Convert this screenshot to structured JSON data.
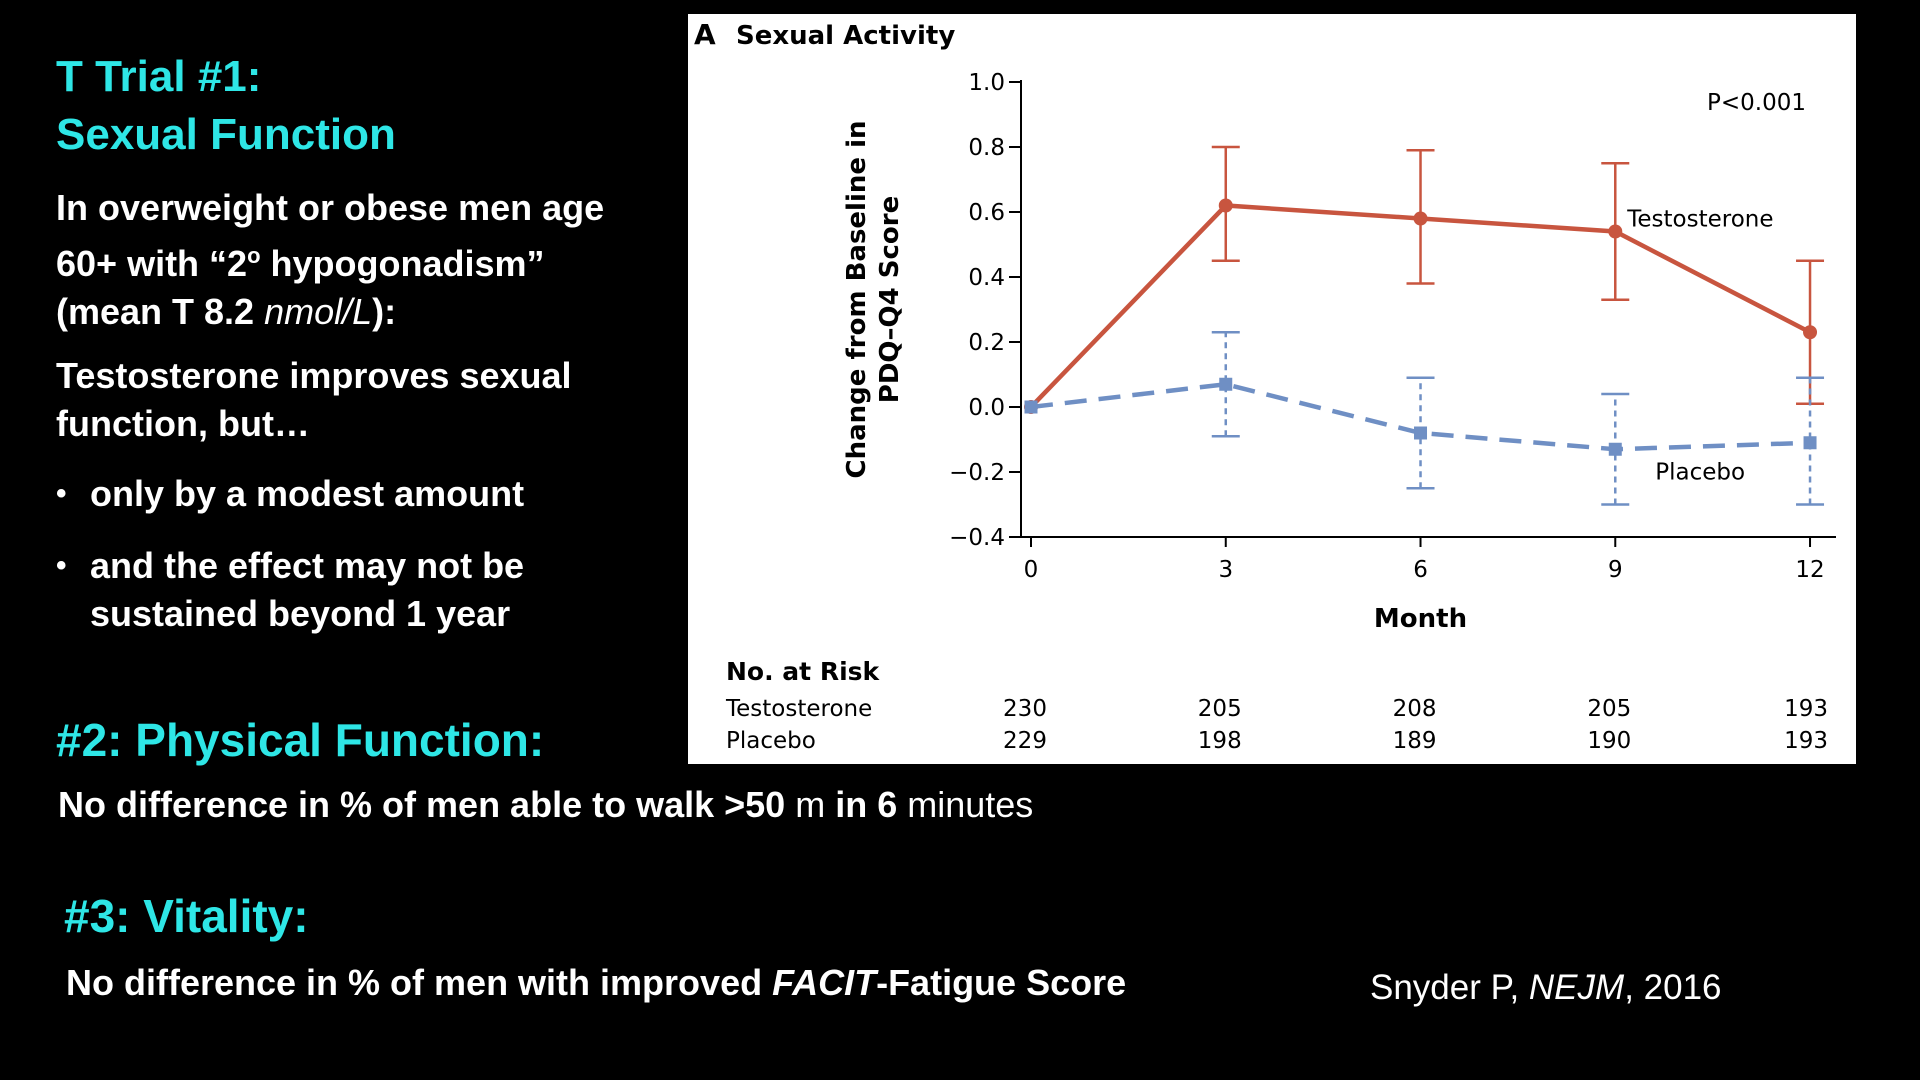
{
  "trial1": {
    "title_line1": "T Trial #1:",
    "title_line2": "Sexual Function",
    "intro_line1": "In overweight or obese men age",
    "intro_line2": "60+ with “2",
    "intro_degree": "o",
    "intro_line2b": " hypogonadism”",
    "intro_line3a": "(mean T 8.2 ",
    "intro_unit": "nmol/L",
    "intro_line3b": "):",
    "finding_line1": "Testosterone improves sexual",
    "finding_line2": "function, but…",
    "bullets": [
      {
        "line1": "only by a modest amount",
        "line2": ""
      },
      {
        "line1": "and the effect may not be",
        "line2": "sustained beyond 1 year"
      }
    ]
  },
  "trial2": {
    "title": "#2: Physical Function:",
    "body_a": "No difference in % of men able to walk >50",
    "body_b": " m ",
    "body_c": "in 6",
    "body_d": " minutes"
  },
  "trial3": {
    "title": "#3: Vitality:",
    "body_a": "No difference in % of men with improved ",
    "body_b": "FACIT",
    "body_c": "-Fatigue Score"
  },
  "citation": {
    "author": "Snyder P, ",
    "journal": "NEJM",
    "year": ", 2016"
  },
  "chart_data": {
    "type": "line",
    "panel_label": "A",
    "title": "Sexual Activity",
    "xlabel": "Month",
    "ylabel_line1": "Change from Baseline in",
    "ylabel_line2": "PDQ–Q4 Score",
    "x": [
      0,
      3,
      6,
      9,
      12
    ],
    "x_ticks": [
      "0",
      "3",
      "6",
      "9",
      "12"
    ],
    "y_ticks": [
      "1.0",
      "0.8",
      "0.6",
      "0.4",
      "0.2",
      "0.0",
      "−0.2",
      "−0.4"
    ],
    "ylim": [
      -0.4,
      1.0
    ],
    "xlim": [
      0,
      12.4
    ],
    "annotation": "P<0.001",
    "series": [
      {
        "name": "Testosterone",
        "color": "#c8553f",
        "style": "solid",
        "values": [
          0.0,
          0.62,
          0.58,
          0.54,
          0.23
        ],
        "err_low": [
          0.0,
          0.45,
          0.38,
          0.33,
          0.01
        ],
        "err_high": [
          0.0,
          0.8,
          0.79,
          0.75,
          0.45
        ]
      },
      {
        "name": "Placebo",
        "color": "#6f8fc4",
        "style": "dashed",
        "values": [
          0.0,
          0.07,
          -0.08,
          -0.13,
          -0.11
        ],
        "err_low": [
          0.0,
          -0.09,
          -0.25,
          -0.3,
          -0.3
        ],
        "err_high": [
          0.0,
          0.23,
          0.09,
          0.04,
          0.09
        ]
      }
    ],
    "at_risk": {
      "header": "No. at Risk",
      "rows": [
        {
          "label": "Testosterone",
          "values": [
            "230",
            "205",
            "208",
            "205",
            "193"
          ]
        },
        {
          "label": "Placebo",
          "values": [
            "229",
            "198",
            "189",
            "190",
            "193"
          ]
        }
      ]
    }
  }
}
